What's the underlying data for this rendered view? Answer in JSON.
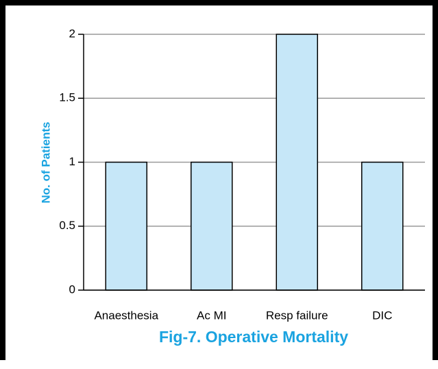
{
  "chart_data": {
    "type": "bar",
    "title": "Fig-7. Operative Mortality",
    "y_label": "No. of Patients",
    "categories": [
      "Anaesthesia",
      "Ac MI",
      "Resp failure",
      "DIC"
    ],
    "values": [
      1,
      1,
      2,
      1
    ],
    "color": "#c6e7f8",
    "ylim": [
      0,
      2
    ],
    "yticks": [
      0,
      0.5,
      1,
      1.5,
      2
    ],
    "grid": true
  }
}
